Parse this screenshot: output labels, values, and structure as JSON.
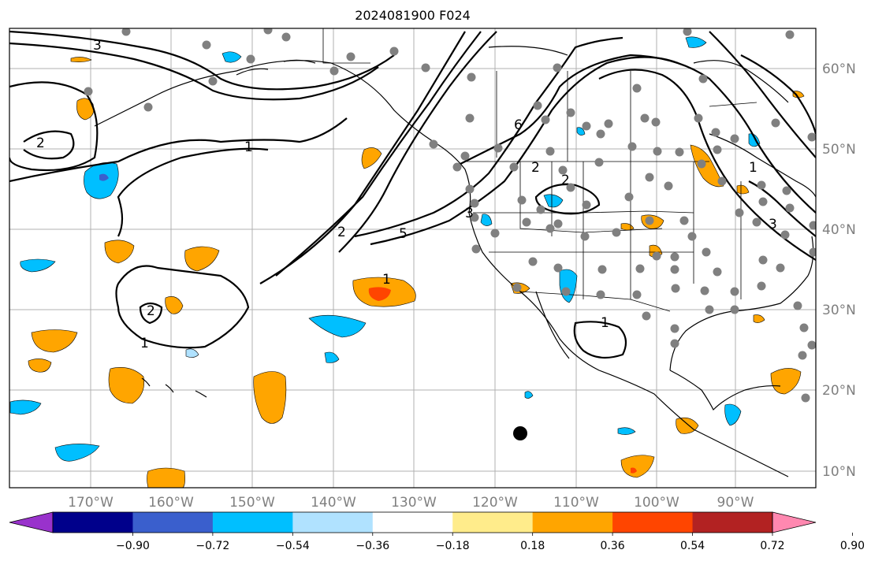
{
  "title": "2024081900 F024",
  "lon_ticks": [
    "170°W",
    "160°W",
    "150°W",
    "140°W",
    "130°W",
    "120°W",
    "110°W",
    "100°W",
    "90°W"
  ],
  "lat_ticks": [
    "60°N",
    "50°N",
    "40°N",
    "30°N",
    "20°N",
    "10°N"
  ],
  "colorbar": {
    "colors": [
      "#9932cc",
      "#00008b",
      "#3a5fcd",
      "#00bfff",
      "#b0e2ff",
      "#ffffff",
      "#ffec8b",
      "#ffa500",
      "#ff4500",
      "#b22222",
      "#ff88b0"
    ],
    "labels": [
      "−0.90",
      "−0.72",
      "−0.54",
      "−0.36",
      "−0.18",
      "0.18",
      "0.36",
      "0.54",
      "0.72",
      "0.90"
    ]
  },
  "contour_labels": [
    "3",
    "1",
    "2",
    "1",
    "2",
    "1",
    "2",
    "5",
    "1",
    "6",
    "2",
    "2",
    "3",
    "3",
    "1"
  ]
}
